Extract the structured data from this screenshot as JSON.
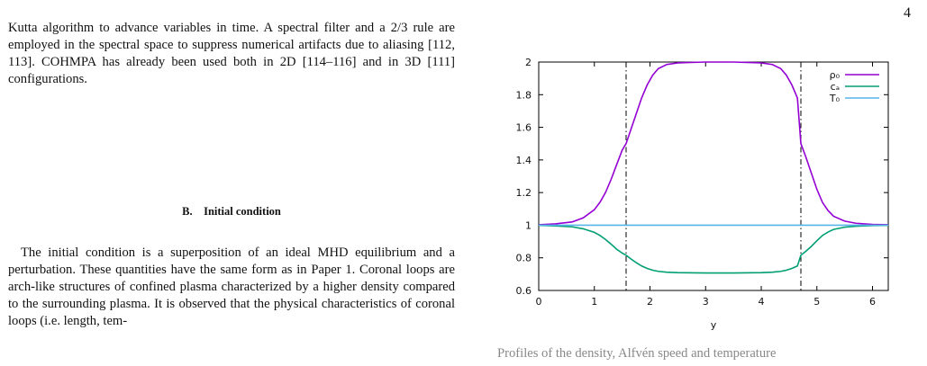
{
  "page_number": "4",
  "text": {
    "paragraph1": "Kutta algorithm to advance variables in time. A spectral filter and a 2/3 rule are employed in the spectral space to suppress numerical artifacts due to aliasing [112, 113]. COHMPA has already been used both in 2D [114–116] and in 3D [111] configurations.",
    "section_heading": "B. Initial condition",
    "paragraph2": "The initial condition is a superposition of an ideal MHD equilibrium and a perturbation. These quantities have the same form as in Paper 1. Coronal loops are arch-like structures of confined plasma characterized by a higher density compared to the surrounding plasma. It is observed that the physical characteristics of coronal loops (i.e. length, tem-",
    "caption_fragment": "Profiles of the density, Alfvén speed and temperature"
  },
  "chart_data": {
    "type": "line",
    "xlabel": "y",
    "ylabel": "",
    "xlim": [
      0,
      6.2832
    ],
    "ylim": [
      0.6,
      2.0
    ],
    "x_ticks": [
      "0",
      "1",
      "2",
      "3",
      "4",
      "5",
      "6"
    ],
    "y_ticks": [
      "0.6",
      "0.8",
      "1",
      "1.2",
      "1.4",
      "1.6",
      "1.8",
      "2"
    ],
    "legend_position": "top-right",
    "vertical_lines": [
      1.5708,
      4.7124
    ],
    "series": [
      {
        "name": "ρ₀",
        "color": "#9400d3",
        "x": [
          0,
          0.3,
          0.6,
          0.8,
          1.0,
          1.1,
          1.2,
          1.3,
          1.4,
          1.5,
          1.5708,
          1.65,
          1.75,
          1.85,
          1.95,
          2.05,
          2.15,
          2.3,
          2.5,
          3.0,
          3.1416,
          3.5,
          4.0,
          4.2,
          4.35,
          4.45,
          4.55,
          4.65,
          4.7124,
          4.8,
          4.9,
          5.0,
          5.1,
          5.2,
          5.3,
          5.5,
          5.7,
          6.0,
          6.2832
        ],
        "values": [
          1.003,
          1.008,
          1.02,
          1.045,
          1.095,
          1.14,
          1.2,
          1.28,
          1.37,
          1.46,
          1.5,
          1.58,
          1.68,
          1.78,
          1.86,
          1.92,
          1.96,
          1.985,
          1.995,
          2.0,
          2.0,
          2.0,
          1.995,
          1.985,
          1.96,
          1.92,
          1.86,
          1.78,
          1.5,
          1.42,
          1.32,
          1.22,
          1.14,
          1.09,
          1.055,
          1.025,
          1.012,
          1.005,
          1.003
        ]
      },
      {
        "name": "cₐ",
        "color": "#009e73",
        "x": [
          0,
          0.3,
          0.6,
          0.8,
          1.0,
          1.1,
          1.2,
          1.3,
          1.4,
          1.5,
          1.5708,
          1.65,
          1.75,
          1.85,
          1.95,
          2.05,
          2.15,
          2.3,
          2.5,
          3.0,
          3.1416,
          3.5,
          4.0,
          4.2,
          4.35,
          4.45,
          4.55,
          4.65,
          4.7124,
          4.8,
          4.9,
          5.0,
          5.1,
          5.2,
          5.3,
          5.5,
          5.7,
          6.0,
          6.2832
        ],
        "values": [
          0.999,
          0.996,
          0.99,
          0.978,
          0.956,
          0.937,
          0.913,
          0.884,
          0.853,
          0.829,
          0.816,
          0.795,
          0.771,
          0.75,
          0.735,
          0.724,
          0.717,
          0.712,
          0.709,
          0.707,
          0.707,
          0.707,
          0.709,
          0.712,
          0.717,
          0.724,
          0.735,
          0.75,
          0.816,
          0.84,
          0.87,
          0.905,
          0.937,
          0.958,
          0.974,
          0.988,
          0.994,
          0.998,
          0.999
        ]
      },
      {
        "name": "T₀",
        "color": "#56b4e9",
        "x": [
          0,
          6.2832
        ],
        "values": [
          1.0,
          1.0
        ]
      }
    ]
  }
}
